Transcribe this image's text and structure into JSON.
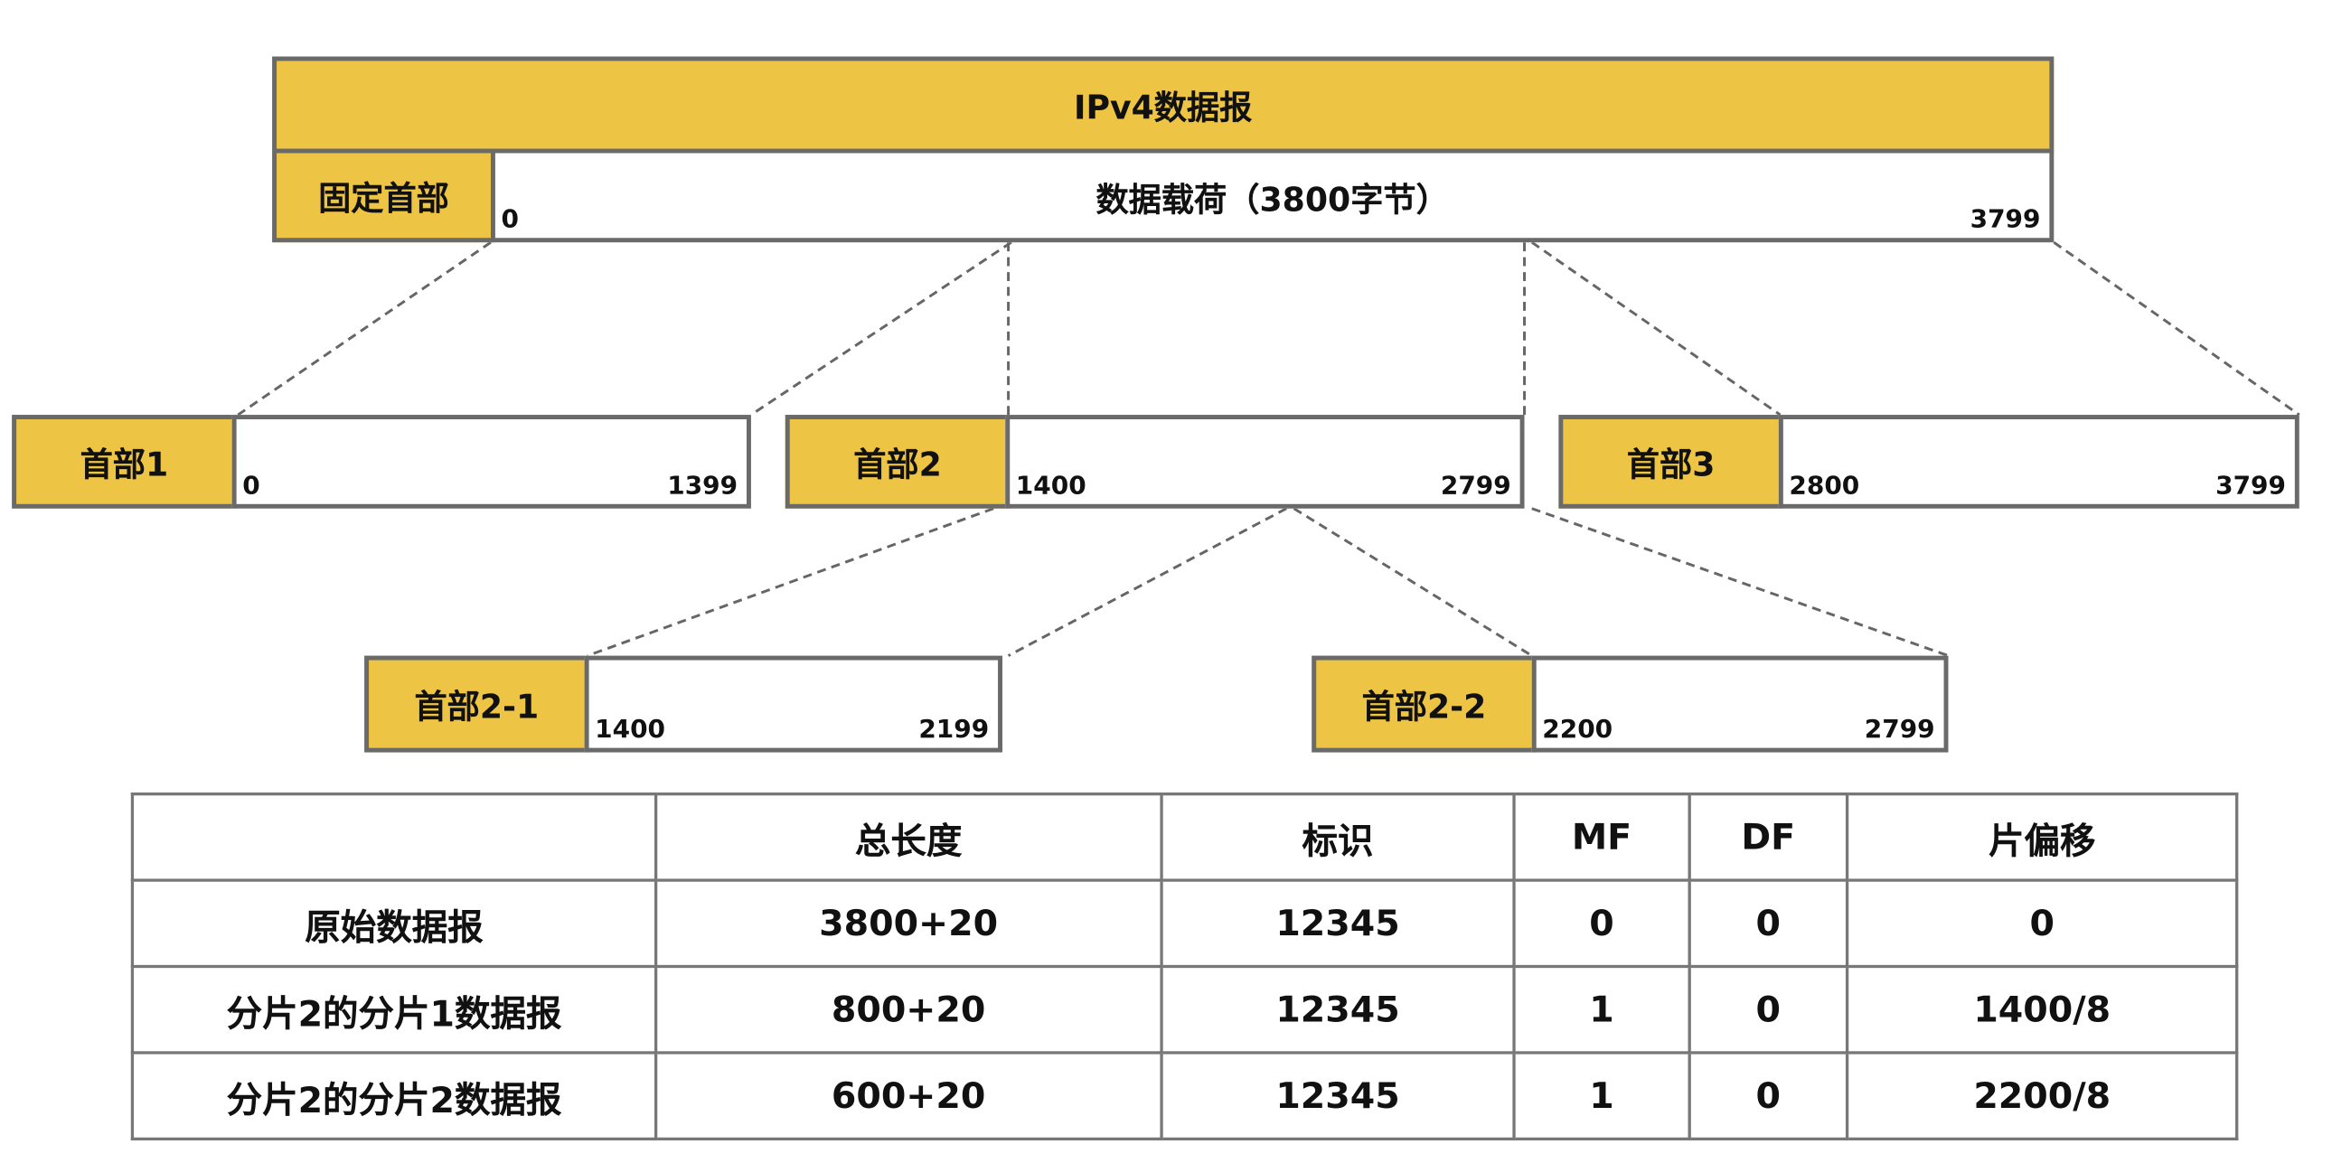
{
  "datagram": {
    "title": "IPv4数据报",
    "fixed_header": "固定首部",
    "payload": "数据载荷（3800字节）",
    "start": "0",
    "end": "3799"
  },
  "fragments": [
    {
      "header": "首部1",
      "start": "0",
      "end": "1399"
    },
    {
      "header": "首部2",
      "start": "1400",
      "end": "2799"
    },
    {
      "header": "首部3",
      "start": "2800",
      "end": "3799"
    }
  ],
  "subfragments": [
    {
      "header": "首部2-1",
      "start": "1400",
      "end": "2199"
    },
    {
      "header": "首部2-2",
      "start": "2200",
      "end": "2799"
    }
  ],
  "table": {
    "headers": [
      "",
      "总长度",
      "标识",
      "MF",
      "DF",
      "片偏移"
    ],
    "rows": [
      [
        "原始数据报",
        "3800+20",
        "12345",
        "0",
        "0",
        "0"
      ],
      [
        "分片2的分片1数据报",
        "800+20",
        "12345",
        "1",
        "0",
        "1400/8"
      ],
      [
        "分片2的分片2数据报",
        "600+20",
        "12345",
        "1",
        "0",
        "2200/8"
      ]
    ]
  },
  "colors": {
    "header_fill": "#eec444",
    "border": "#6a6a6a"
  }
}
